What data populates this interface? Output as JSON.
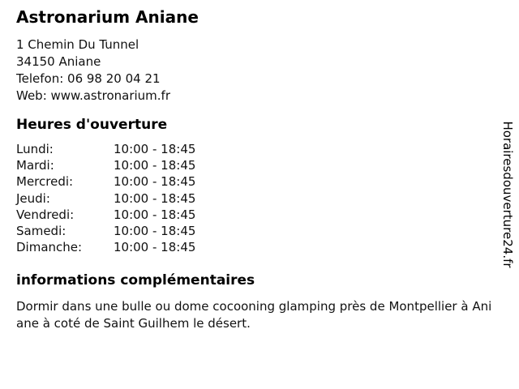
{
  "business": {
    "title": "Astronarium Aniane",
    "address_line1": "1 Chemin Du Tunnel",
    "address_line2": "34150 Aniane",
    "phone_line": "Telefon: 06 98 20 04 21",
    "web_line": "Web: www.astronarium.fr"
  },
  "hours": {
    "heading": "Heures d'ouverture",
    "rows": [
      {
        "day": "Lundi:",
        "time": "10:00 - 18:45"
      },
      {
        "day": "Mardi:",
        "time": "10:00 - 18:45"
      },
      {
        "day": "Mercredi:",
        "time": "10:00 - 18:45"
      },
      {
        "day": "Jeudi:",
        "time": "10:00 - 18:45"
      },
      {
        "day": "Vendredi:",
        "time": "10:00 - 18:45"
      },
      {
        "day": "Samedi:",
        "time": "10:00 - 18:45"
      },
      {
        "day": "Dimanche:",
        "time": "10:00 - 18:45"
      }
    ]
  },
  "info": {
    "heading": "informations complémentaires",
    "text": "Dormir dans une bulle ou dome cocooning glamping près de Montpellier à Aniane à coté de Saint Guilhem le désert."
  },
  "watermark": "Horairesdouverture24.fr",
  "colors": {
    "text": "#000000",
    "background": "#ffffff"
  }
}
